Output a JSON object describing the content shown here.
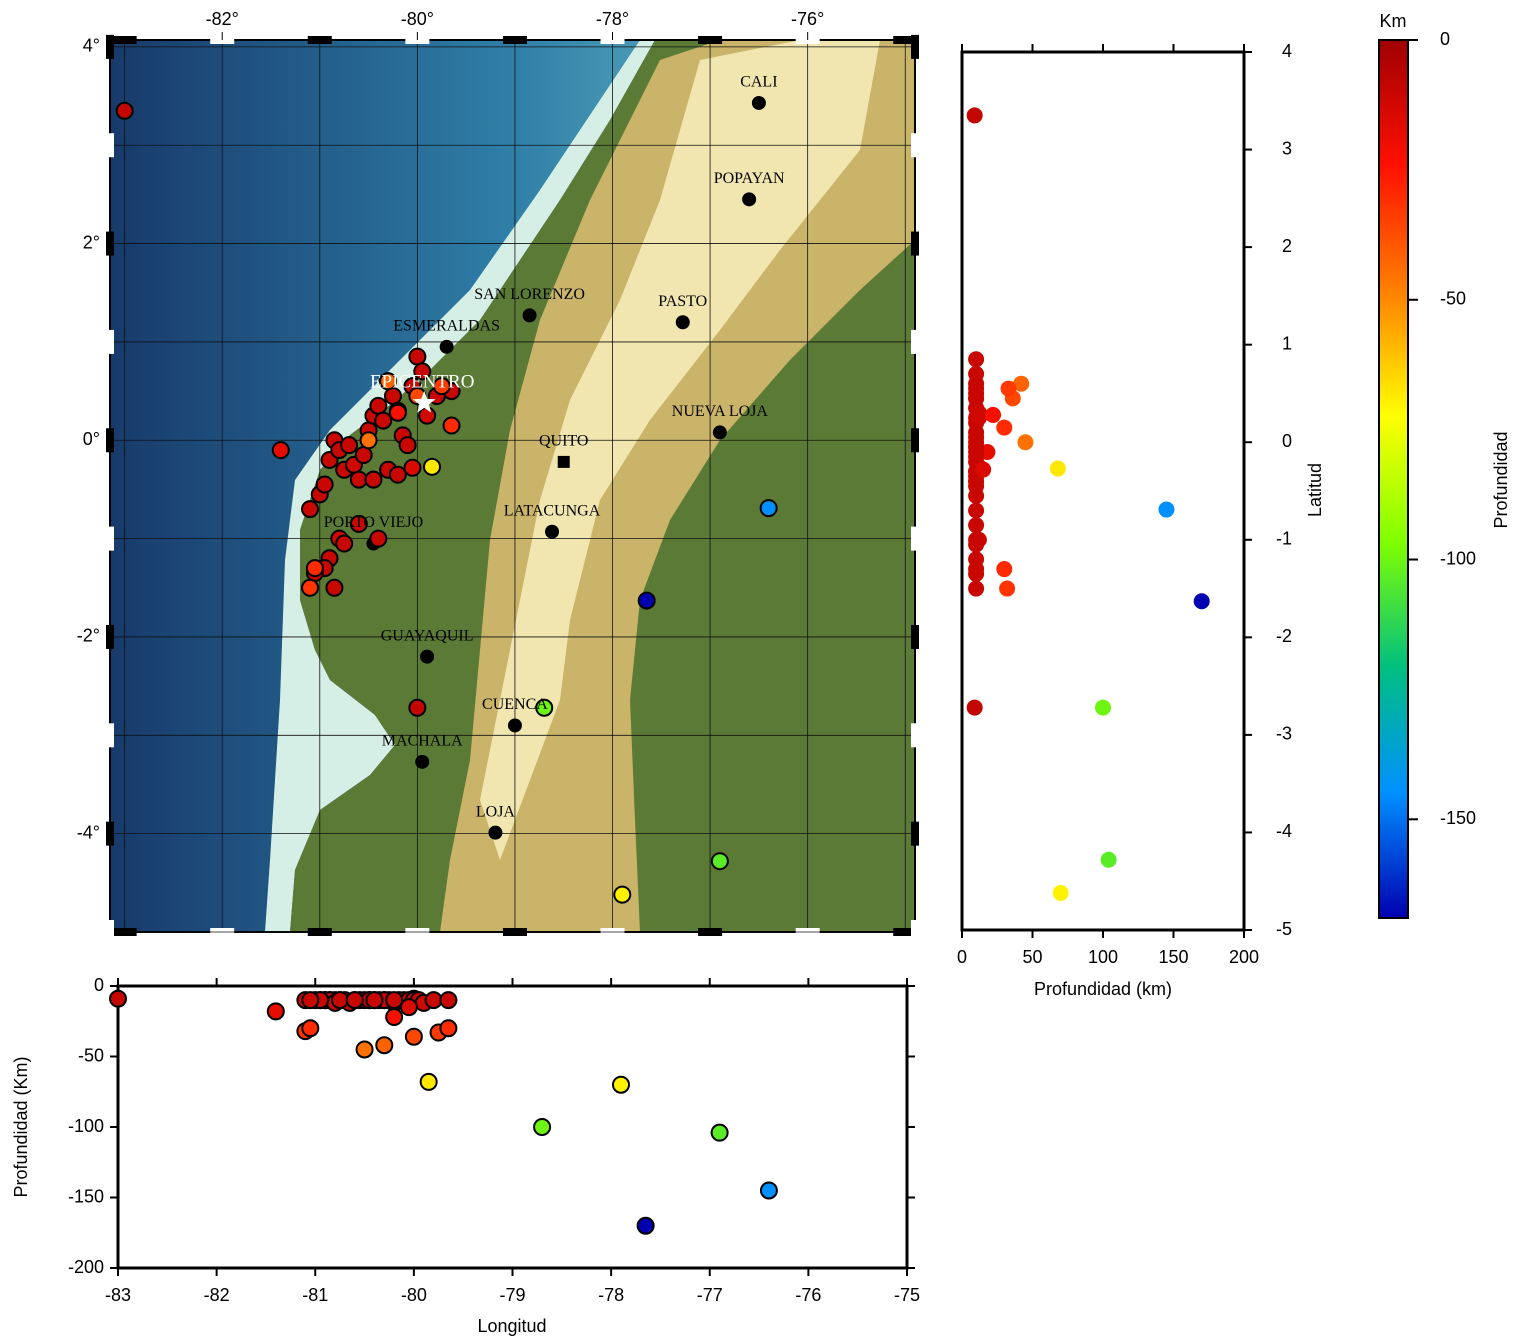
{
  "chart_data": [
    {
      "type": "map",
      "xlim": [
        -83.15,
        -74.9
      ],
      "ylim": [
        -5,
        4.07
      ],
      "xticks": [
        {
          "value": -82,
          "label": "-82°"
        },
        {
          "value": -80,
          "label": "-80°"
        },
        {
          "value": -78,
          "label": "-78°"
        },
        {
          "value": -76,
          "label": "-76°"
        }
      ],
      "yticks": [
        {
          "value": 4,
          "label": "4°"
        },
        {
          "value": 2,
          "label": "2°"
        },
        {
          "value": 0,
          "label": "0°"
        },
        {
          "value": -2,
          "label": "-2°"
        },
        {
          "value": -4,
          "label": "-4°"
        }
      ],
      "xgrid": [
        -83,
        -82,
        -81,
        -80,
        -79,
        -78,
        -77,
        -76,
        -75
      ],
      "ygrid": [
        4,
        3,
        2,
        1,
        0,
        -1,
        -2,
        -3,
        -4,
        -5
      ],
      "grid": true,
      "x": [
        -83.0,
        -81.4,
        -79.85,
        -76.4,
        -77.65,
        -78.7,
        -76.9,
        -77.9,
        -80.0,
        -81.1,
        -81.0,
        -80.95,
        -80.9,
        -80.85,
        -80.8,
        -80.75,
        -80.7,
        -80.65,
        -80.6,
        -80.55,
        -80.5,
        -80.45,
        -80.4,
        -80.35,
        -80.3,
        -80.25,
        -80.2,
        -80.15,
        -80.1,
        -80.05,
        -80.0,
        -79.95,
        -79.9,
        -79.8,
        -79.65,
        -80.9,
        -80.85,
        -80.8,
        -80.75,
        -80.95,
        -81.05,
        -80.45,
        -80.3,
        -80.2,
        -80.6,
        -80.4,
        -81.1,
        -81.05,
        -80.5,
        -80.3,
        -80.0,
        -79.75,
        -79.65,
        -80.2,
        -80.05
      ],
      "y": [
        3.35,
        -0.1,
        -0.27,
        -0.69,
        -1.63,
        -2.72,
        -4.28,
        -4.62,
        -2.72,
        -0.7,
        -0.55,
        -0.45,
        -0.2,
        0.0,
        -0.1,
        -0.3,
        -0.05,
        -0.25,
        -0.4,
        -0.15,
        0.1,
        0.25,
        0.35,
        0.2,
        0.6,
        0.45,
        0.3,
        0.05,
        -0.05,
        0.55,
        0.85,
        0.7,
        0.25,
        0.45,
        0.5,
        -1.2,
        -1.5,
        -1.0,
        -1.05,
        -1.3,
        -1.35,
        -0.4,
        -0.3,
        -0.35,
        -0.85,
        -1.0,
        -1.5,
        -1.3,
        0.0,
        0.6,
        0.45,
        0.55,
        0.15,
        0.28,
        -0.28
      ],
      "depth": [
        9,
        18,
        68,
        145,
        170,
        100,
        104,
        70,
        9,
        10,
        10,
        10,
        10,
        10,
        10,
        10,
        10,
        12,
        10,
        10,
        10,
        10,
        10,
        10,
        10,
        10,
        12,
        10,
        10,
        10,
        10,
        10,
        12,
        10,
        10,
        10,
        10,
        12,
        10,
        10,
        10,
        10,
        10,
        10,
        10,
        10,
        32,
        30,
        45,
        42,
        36,
        33,
        30,
        22,
        15
      ],
      "cities": [
        {
          "name": "CALI",
          "lon": -76.5,
          "lat": 3.43
        },
        {
          "name": "POPAYAN",
          "lon": -76.6,
          "lat": 2.45
        },
        {
          "name": "SAN LORENZO",
          "lon": -78.85,
          "lat": 1.27
        },
        {
          "name": "PASTO",
          "lon": -77.28,
          "lat": 1.2
        },
        {
          "name": "ESMERALDAS",
          "lon": -79.7,
          "lat": 0.95
        },
        {
          "name": "NUEVA LOJA",
          "lon": -76.9,
          "lat": 0.08
        },
        {
          "name": "QUITO",
          "lon": -78.5,
          "lat": -0.22
        },
        {
          "name": "LATACUNGA",
          "lon": -78.62,
          "lat": -0.93
        },
        {
          "name": "PORTO VIEJO",
          "lon": -80.45,
          "lat": -1.05
        },
        {
          "name": "GUAYAQUIL",
          "lon": -79.9,
          "lat": -2.2
        },
        {
          "name": "CUENCA",
          "lon": -79.0,
          "lat": -2.9
        },
        {
          "name": "MACHALA",
          "lon": -79.95,
          "lat": -3.27
        },
        {
          "name": "LOJA",
          "lon": -79.2,
          "lat": -3.99
        }
      ],
      "epicenter": {
        "name": "EPICENTRO",
        "lon": -79.93,
        "lat": 0.38
      }
    },
    {
      "type": "scatter",
      "xlabel": "Profundidad (km)",
      "ylabel": "Latitud",
      "xlim": [
        0,
        200
      ],
      "ylim": [
        -5,
        4
      ],
      "xticks": [
        0,
        50,
        100,
        150,
        200
      ],
      "yticks": [
        4,
        3,
        2,
        1,
        0,
        -1,
        -2,
        -3,
        -4,
        -5
      ],
      "x": [
        9,
        18,
        68,
        145,
        170,
        100,
        104,
        70,
        9,
        10,
        10,
        10,
        10,
        10,
        10,
        10,
        10,
        12,
        10,
        10,
        10,
        10,
        10,
        10,
        10,
        10,
        12,
        10,
        10,
        10,
        10,
        10,
        12,
        10,
        10,
        10,
        10,
        12,
        10,
        10,
        10,
        10,
        10,
        10,
        10,
        10,
        32,
        30,
        45,
        42,
        36,
        33,
        30,
        22,
        15
      ],
      "y": [
        3.35,
        -0.1,
        -0.27,
        -0.69,
        -1.63,
        -2.72,
        -4.28,
        -4.62,
        -2.72,
        -0.7,
        -0.55,
        -0.45,
        -0.2,
        0.0,
        -0.1,
        -0.3,
        -0.05,
        -0.25,
        -0.4,
        -0.15,
        0.1,
        0.25,
        0.35,
        0.2,
        0.6,
        0.45,
        0.3,
        0.05,
        -0.05,
        0.55,
        0.85,
        0.7,
        0.25,
        0.45,
        0.5,
        -1.2,
        -1.5,
        -1.0,
        -1.05,
        -1.3,
        -1.35,
        -0.4,
        -0.3,
        -0.35,
        -0.85,
        -1.0,
        -1.5,
        -1.3,
        0.0,
        0.6,
        0.45,
        0.55,
        0.15,
        0.28,
        -0.28
      ]
    },
    {
      "type": "scatter",
      "xlabel": "Longitud",
      "ylabel": "Profundidad (Km)",
      "xlim": [
        -83,
        -75
      ],
      "ylim": [
        -200,
        0
      ],
      "xticks": [
        -83,
        -82,
        -81,
        -80,
        -79,
        -78,
        -77,
        -76,
        -75
      ],
      "yticks": [
        0,
        -50,
        -100,
        -150,
        -200
      ],
      "x": [
        -83.0,
        -81.4,
        -79.85,
        -76.4,
        -77.65,
        -78.7,
        -76.9,
        -77.9,
        -80.0,
        -81.1,
        -81.0,
        -80.95,
        -80.9,
        -80.85,
        -80.8,
        -80.75,
        -80.7,
        -80.65,
        -80.6,
        -80.55,
        -80.5,
        -80.45,
        -80.4,
        -80.35,
        -80.3,
        -80.25,
        -80.2,
        -80.15,
        -80.1,
        -80.05,
        -80.0,
        -79.95,
        -79.9,
        -79.8,
        -79.65,
        -80.9,
        -80.85,
        -80.8,
        -80.75,
        -80.95,
        -81.05,
        -80.45,
        -80.3,
        -80.2,
        -80.6,
        -80.4,
        -81.1,
        -81.05,
        -80.5,
        -80.3,
        -80.0,
        -79.75,
        -79.65,
        -80.2,
        -80.05
      ],
      "y": [
        -9,
        -18,
        -68,
        -145,
        -170,
        -100,
        -104,
        -70,
        -9,
        -10,
        -10,
        -10,
        -10,
        -10,
        -10,
        -10,
        -10,
        -12,
        -10,
        -10,
        -10,
        -10,
        -10,
        -10,
        -10,
        -10,
        -12,
        -10,
        -10,
        -10,
        -10,
        -10,
        -12,
        -10,
        -10,
        -10,
        -10,
        -12,
        -10,
        -10,
        -10,
        -10,
        -10,
        -10,
        -10,
        -10,
        -32,
        -30,
        -45,
        -42,
        -36,
        -33,
        -30,
        -22,
        -15
      ]
    },
    {
      "type": "colorbar",
      "title": "Km",
      "label": "Profundidad",
      "lim": [
        0,
        -169
      ],
      "ticks": [
        0,
        -50,
        -100,
        -150
      ],
      "colors": [
        "#a00000",
        "#ff1000",
        "#ff8000",
        "#ffff00",
        "#80ff00",
        "#00c080",
        "#0090ff",
        "#0000b0"
      ]
    }
  ]
}
